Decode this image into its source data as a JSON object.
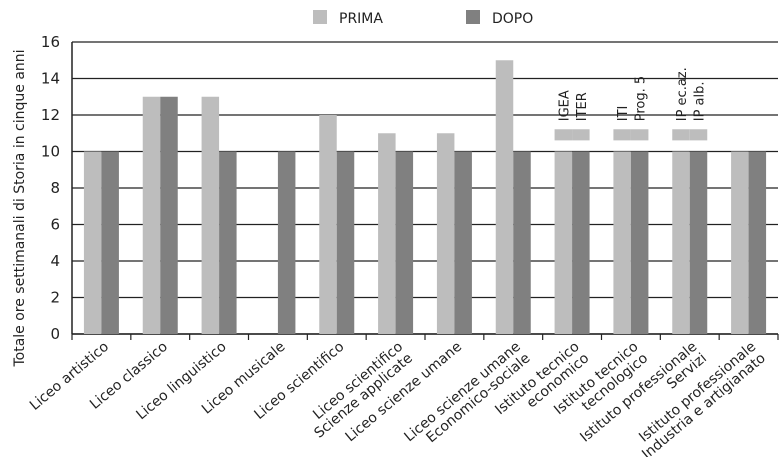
{
  "chart_data": {
    "type": "bar",
    "ylabel": "Totale ore settimanali di Storia in cinque anni",
    "xlabel": "",
    "ylim": [
      0,
      16
    ],
    "yticks": [
      0,
      2,
      4,
      6,
      8,
      10,
      12,
      14,
      16
    ],
    "grid": true,
    "legend_position": "top-center",
    "categories": [
      [
        "Liceo artistico"
      ],
      [
        "Liceo classico"
      ],
      [
        "Liceo linguistico"
      ],
      [
        "Liceo musicale"
      ],
      [
        "Liceo scientifico"
      ],
      [
        "Liceo scientifico",
        "Scienze applicate"
      ],
      [
        "Liceo scienze umane"
      ],
      [
        "Liceo scienze umane",
        "Economico-sociale"
      ],
      [
        "Istituto tecnico",
        "economico"
      ],
      [
        "Istituto tecnico",
        "tecnologico"
      ],
      [
        "Istituto professionale",
        "Servizi"
      ],
      [
        "Istituto professionale",
        "Industria e artigianato"
      ]
    ],
    "series": [
      {
        "name": "PRIMA",
        "color": "#bdbdbd",
        "values": [
          10,
          13,
          13,
          null,
          12,
          11,
          11,
          15,
          10,
          10,
          10,
          10
        ]
      },
      {
        "name": "DOPO",
        "color": "#808080",
        "values": [
          10,
          13,
          10,
          10,
          10,
          10,
          10,
          10,
          10,
          10,
          10,
          10
        ]
      }
    ],
    "sub_bars": [
      {
        "label": "IGEA",
        "category": 8,
        "series": 0,
        "values": [
          10,
          11
        ]
      },
      {
        "label": "ITER",
        "category": 8,
        "series": 1,
        "values": [
          10,
          11
        ]
      },
      {
        "label": "ITI",
        "category": 9,
        "series": 0,
        "values": [
          10,
          11
        ]
      },
      {
        "label": "Prog. 5",
        "category": 9,
        "series": 1,
        "values": [
          10,
          11
        ]
      },
      {
        "label": "IP ec.az.",
        "category": 10,
        "series": 0,
        "values": [
          10,
          11
        ]
      },
      {
        "label": "IP alb.",
        "category": 10,
        "series": 1,
        "values": [
          10,
          11
        ]
      }
    ]
  }
}
